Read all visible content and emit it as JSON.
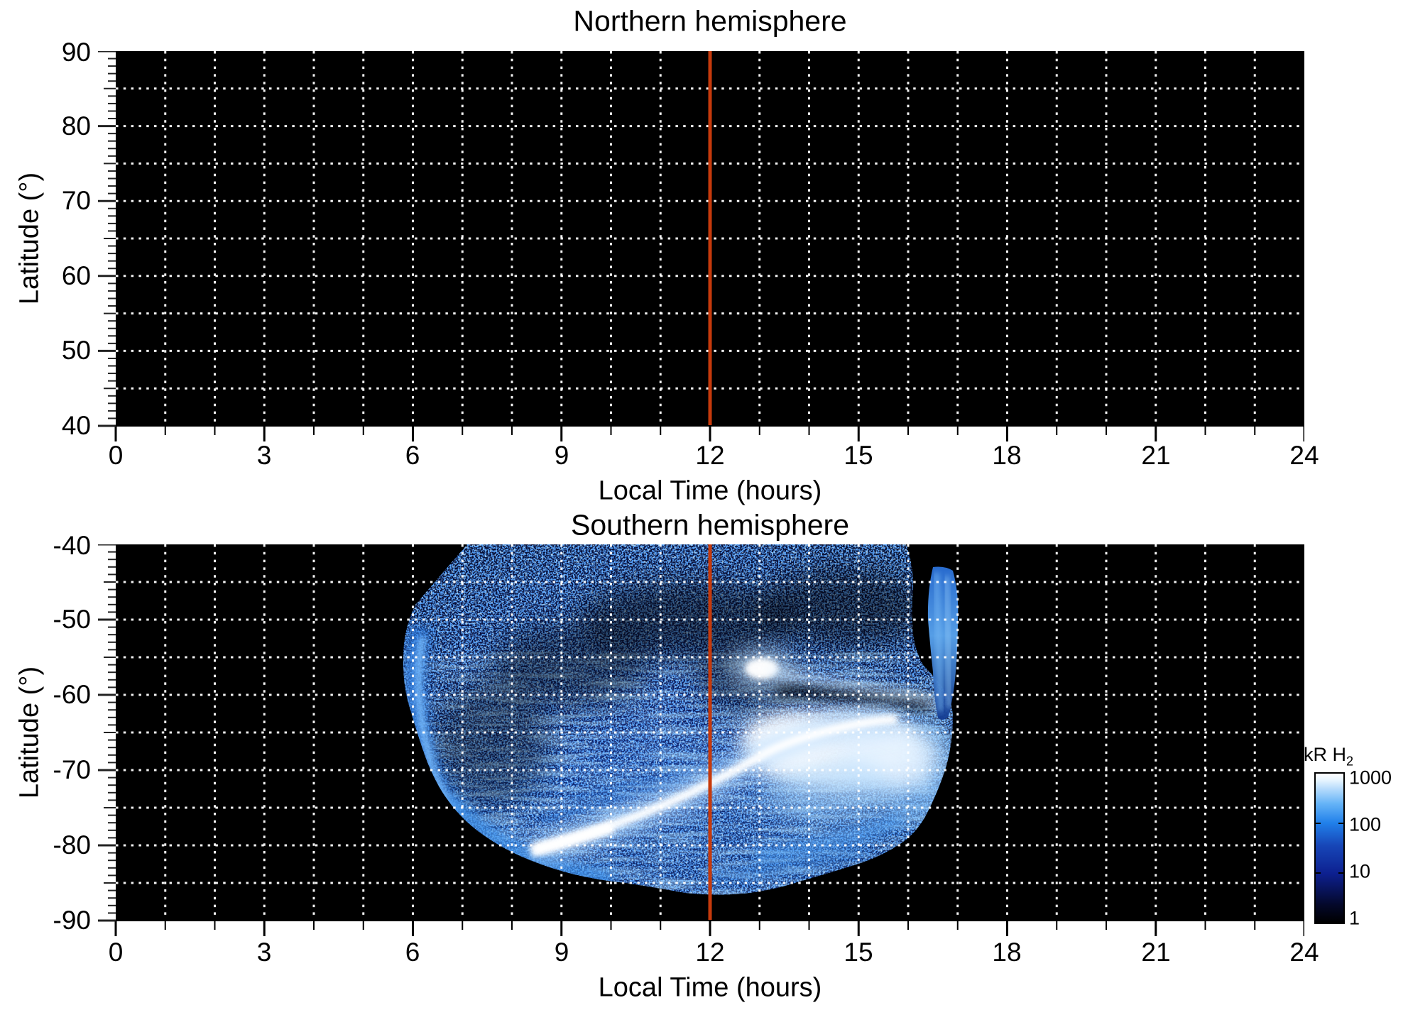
{
  "figure": {
    "background": "#ffffff",
    "panel_background": "#000000",
    "grid_color": "#ffffff",
    "noon_line_color": "#c63a0c"
  },
  "north": {
    "title": "Northern hemisphere",
    "xlabel": "Local Time (hours)",
    "ylabel": "Latitude (°)",
    "x_tick_labels": [
      "0",
      "3",
      "6",
      "9",
      "12",
      "15",
      "18",
      "21",
      "24"
    ],
    "y_tick_labels": [
      "90",
      "80",
      "70",
      "60",
      "50",
      "40"
    ]
  },
  "south": {
    "title": "Southern hemisphere",
    "xlabel": "Local Time (hours)",
    "ylabel": "Latitude (°)",
    "x_tick_labels": [
      "0",
      "3",
      "6",
      "9",
      "12",
      "15",
      "18",
      "21",
      "24"
    ],
    "y_tick_labels": [
      "-40",
      "-50",
      "-60",
      "-70",
      "-80",
      "-90"
    ]
  },
  "colorbar": {
    "label_main": "kR H",
    "label_sub": "2",
    "tick_labels": [
      "1000",
      "100",
      "10",
      "1"
    ]
  },
  "chart_data": [
    {
      "type": "heatmap",
      "title": "Northern hemisphere",
      "xlabel": "Local Time (hours)",
      "ylabel": "Latitude (°)",
      "x_range": [
        0,
        24
      ],
      "x_ticks": [
        0,
        3,
        6,
        9,
        12,
        15,
        18,
        21,
        24
      ],
      "x_minor_tick_interval": 1,
      "y_range": [
        40,
        90
      ],
      "y_ticks": [
        40,
        50,
        60,
        70,
        80,
        90
      ],
      "y_minor_tick_interval": 1,
      "grid": "white dotted, vertical every 1 h, horizontal every 5 deg",
      "background": "#000000",
      "values": "no H2 emission above 1 kR threshold; panel entirely black",
      "annotations": [
        {
          "type": "vline",
          "x": 12,
          "color": "#c63a0c",
          "label": "local noon"
        }
      ]
    },
    {
      "type": "heatmap",
      "title": "Southern hemisphere",
      "xlabel": "Local Time (hours)",
      "ylabel": "Latitude (°)",
      "x_range": [
        0,
        24
      ],
      "x_ticks": [
        0,
        3,
        6,
        9,
        12,
        15,
        18,
        21,
        24
      ],
      "x_minor_tick_interval": 1,
      "y_range": [
        -90,
        -40
      ],
      "y_ticks": [
        -90,
        -80,
        -70,
        -60,
        -50,
        -40
      ],
      "y_minor_tick_interval": 1,
      "grid": "white dotted, vertical every 1 h, horizontal every 5 deg",
      "background": "#000000",
      "colorbar": {
        "label": "kR H2",
        "scale": "log",
        "range": [
          1,
          1000
        ],
        "ticks": [
          1,
          10,
          100,
          1000
        ],
        "colormap": "black -> dark blue -> blue -> white"
      },
      "coverage": {
        "local_time_hours": [
          5.8,
          17.0
        ],
        "latitude_deg": [
          -86.5,
          -40
        ]
      },
      "features": [
        {
          "name": "main auroral arc",
          "path_lt_lat": [
            [
              8.4,
              -80.5
            ],
            [
              10,
              -76
            ],
            [
              12,
              -70.5
            ],
            [
              13.3,
              -68
            ],
            [
              15.8,
              -64.5
            ]
          ],
          "intensity": "saturated white, ~1000 kR"
        },
        {
          "name": "bright dayside spot",
          "center_lt_lat": [
            13.0,
            -56.5
          ],
          "intensity": "~1000 kR"
        },
        {
          "name": "bright afternoon glow region",
          "center_lt_lat": [
            14.5,
            -67.5
          ],
          "extent_lt": [
            13.2,
            16.2
          ],
          "extent_lat": [
            -73,
            -61
          ]
        },
        {
          "name": "dawn-side streaked band",
          "center_lt_lat": [
            6.3,
            -62
          ],
          "extent_lt": [
            5.8,
            6.9
          ],
          "extent_lat": [
            -76,
            -50
          ]
        },
        {
          "name": "dusk-side streaked band",
          "center_lt_lat": [
            16.6,
            -52
          ],
          "extent_lt": [
            16.4,
            17.0
          ],
          "extent_lat": [
            -63,
            -43
          ]
        },
        {
          "name": "background speckle",
          "intensity": "1-10 kR noise over observed swath"
        }
      ],
      "annotations": [
        {
          "type": "vline",
          "x": 12,
          "color": "#c63a0c",
          "label": "local noon"
        }
      ]
    }
  ]
}
